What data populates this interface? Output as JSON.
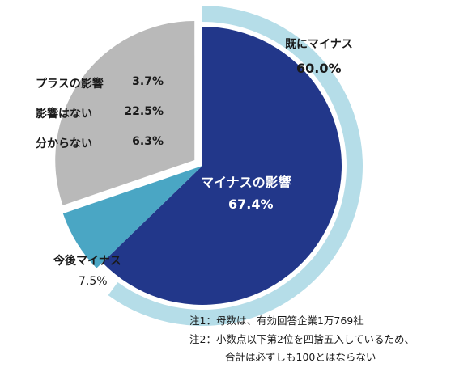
{
  "chart_data": {
    "type": "pie",
    "inner": {
      "slices": [
        {
          "label": "マイナスの影響",
          "value": 67.4,
          "color": "#22378a"
        },
        {
          "label": "今後マイナス",
          "value": 7.5,
          "color": "#4aa6c4"
        },
        {
          "label": "プラスの影響",
          "value": 3.7,
          "color": "#b9b9b9"
        },
        {
          "label": "影響はない",
          "value": 22.5,
          "color": "#b9b9b9"
        },
        {
          "label": "分からない",
          "value": 6.3,
          "color": "#b9b9b9"
        }
      ],
      "center_label": "マイナスの影響",
      "center_value": "67.4%"
    },
    "outer": {
      "label": "既にマイナス",
      "value": 60.0,
      "value_text": "60.0%",
      "color": "#b5dde8"
    },
    "legend_rows": [
      {
        "label": "プラスの影響",
        "value": "3.7%"
      },
      {
        "label": "影響はない",
        "value": "22.5%"
      },
      {
        "label": "分からない",
        "value": "6.3%"
      }
    ],
    "minus_future": {
      "label": "今後マイナス",
      "value_text": "7.5%"
    }
  },
  "notes": [
    "注1：母数は、有効回答企業1万769社",
    "注2：小数点以下第2位を四捨五入しているため、",
    "合計は必ずしも100とはならない"
  ]
}
